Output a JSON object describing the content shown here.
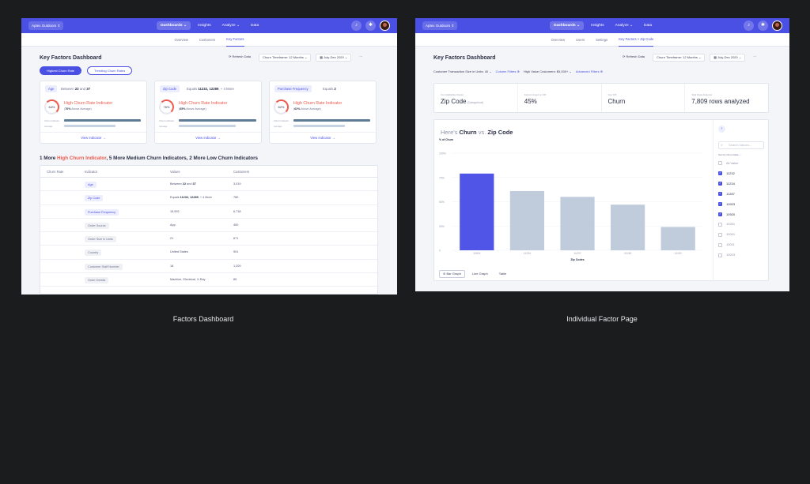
{
  "captions": {
    "left": "Factors Dashboard",
    "right": "Individual Factor Page"
  },
  "nav": {
    "org": "Aptex Outdoors ⇕",
    "links": [
      "Dashboards ⌄",
      "Insights",
      "Analyze ⌄",
      "Data"
    ],
    "icons": [
      "bell-icon",
      "gear-icon"
    ]
  },
  "left": {
    "subnav": [
      "Overview",
      "Customers",
      "Key Factors"
    ],
    "title": "Key Factors Dashboard",
    "refresh": "⟳ Refresh Data",
    "timeframe": "Churn Timeframe: 12 Months ⌄",
    "daterange": "▦ July-Dec 2020 ⌄",
    "more": "···",
    "pills": [
      "Highest Churn Rate",
      "Trending Churn Rates"
    ],
    "cards": [
      {
        "tag": "Age",
        "pre": "Between ",
        "b1": "22",
        "mid": " and ",
        "b2": "37",
        "pct": "64%",
        "title": "High Churn Rate Indicator",
        "subb": "70%",
        "sub": " Above Average",
        "r1": "Churn Indicator",
        "r2": "Average",
        "bar1": 0.9,
        "bar2": 0.6,
        "link": "View Indicator  →"
      },
      {
        "tag": "Zip Code",
        "pre": "Equals ",
        "b1": "11232, 12289",
        "mid": ", ",
        "b2": "",
        "post": "+ 4 More",
        "pct": "76%",
        "title": "High Churn Rate Indicator",
        "subb": "65%",
        "sub": " Above Average",
        "r1": "Churn Indicator",
        "r2": "Average",
        "bar1": 0.95,
        "bar2": 0.68,
        "link": "View Indicator  →"
      },
      {
        "tag": "Purchase Frequency",
        "pre": "Equals ",
        "b1": "2",
        "mid": "",
        "b2": "",
        "pct": "62%",
        "title": "High Churn Rate Indicator",
        "subb": "62%",
        "sub": " Above Average",
        "r1": "Churn Indicator",
        "r2": "Average",
        "bar1": 0.9,
        "bar2": 0.6,
        "link": "View Indicator  →"
      }
    ],
    "summary": {
      "n1": "1 More ",
      "r": "High Churn Indicator",
      "n2": ", 5 More Medium Churn Indicators, 2 More Low Churn Indicators"
    },
    "table": {
      "headers": [
        "Churn Rate",
        "Indicator",
        "Values",
        "Customers"
      ],
      "rows": [
        {
          "ind": "Age",
          "pre": "Between ",
          "b1": "22",
          "mid": " and ",
          "b2": "37",
          "post": "",
          "cus": "3,019",
          "grey": false
        },
        {
          "ind": "Zip Code",
          "pre": "Equals ",
          "b1": "11232, 12289",
          "mid": ", + 4 More",
          "b2": "",
          "post": "",
          "cus": "780",
          "grey": false
        },
        {
          "ind": "Purchase Frequency",
          "pre": "15,992",
          "b1": "",
          "mid": "",
          "b2": "",
          "post": "",
          "cus": "6,718",
          "grey": false
        },
        {
          "ind": "Order Source",
          "pre": "App",
          "b1": "",
          "mid": "",
          "b2": "",
          "post": "",
          "cus": "450",
          "grey": true
        },
        {
          "ind": "Order Size in Units",
          "pre": "21",
          "b1": "",
          "mid": "",
          "b2": "",
          "post": "",
          "cus": "671",
          "grey": true
        },
        {
          "ind": "Country",
          "pre": "United States",
          "b1": "",
          "mid": "",
          "b2": "",
          "post": "",
          "cus": "901",
          "grey": true
        },
        {
          "ind": "Customer Staff Number",
          "pre": "18",
          "b1": "",
          "mid": "",
          "b2": "",
          "post": "",
          "cus": "1,209",
          "grey": true
        },
        {
          "ind": "Order Details",
          "pre": "Machine, Electrical, X-Ray",
          "b1": "",
          "mid": "",
          "b2": "",
          "post": "",
          "cus": "89",
          "grey": true
        }
      ]
    }
  },
  "right": {
    "subnav": [
      "Overview",
      "Users",
      "Settings",
      "Key Factors  >  Zip Code"
    ],
    "title": "Key Factors Dashboard",
    "refresh": "⟳ Refresh Data",
    "timeframe": "Churn Timeframe: 12 Months ⌄",
    "daterange": "▦ July-Dec 2020 ⌄",
    "more": "···",
    "filters": [
      "Customer Transaction Size in Units: 40 ⌄",
      "Column Filters ⊕",
      "High Value Customers: $5,000+ ⌄",
      "Advanced Filters ⊕"
    ],
    "stats": [
      {
        "label": "Your Highlighted Factor",
        "value": "Zip Code",
        "small": " (Categorical)"
      },
      {
        "label": "Factors Impact on KPI",
        "value": "45%",
        "small": ""
      },
      {
        "label": "Your KPI",
        "value": "Churn",
        "small": ""
      },
      {
        "label": "Total Rows Analyzed",
        "value": "7,809 rows analyzed",
        "small": ""
      }
    ],
    "chart_title": {
      "a": "Here's ",
      "b": "Churn",
      "c": " vs. ",
      "d": "Zip Code"
    },
    "search_placeholder": "Search Values...",
    "sort": "Sort by Churn Rate  ⌄",
    "values": [
      {
        "label": "All Value",
        "checked": false
      },
      {
        "label": "11232",
        "checked": true
      },
      {
        "label": "11234",
        "checked": true
      },
      {
        "label": "11287",
        "checked": true
      },
      {
        "label": "10923",
        "checked": true
      },
      {
        "label": "10920",
        "checked": true
      },
      {
        "label": "10251",
        "checked": false
      },
      {
        "label": "10001",
        "checked": false
      },
      {
        "label": "10011",
        "checked": false
      },
      {
        "label": "10023",
        "checked": false
      }
    ],
    "tabs": [
      "⊘ Bar Graph",
      "Line Graph",
      "Table"
    ]
  },
  "chart_data": {
    "type": "bar",
    "ylabel": "% of Churn",
    "xlabel": "Zip Codes",
    "categories": [
      "10001",
      "11234",
      "11237",
      "11245",
      "11192"
    ],
    "values": [
      79,
      61,
      55,
      47,
      24
    ],
    "ylim": [
      0,
      100
    ],
    "yticks": [
      "0",
      "25%",
      "50%",
      "75%",
      "100%"
    ],
    "highlight_color": "#5055e8",
    "bar_color": "#c0ccdb",
    "grid": true
  }
}
